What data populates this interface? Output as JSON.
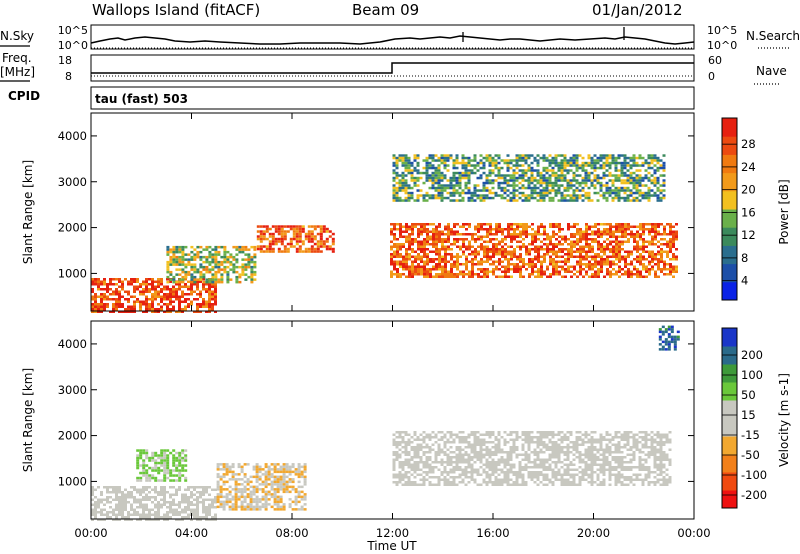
{
  "header": {
    "station": "Wallops Island (fitACF)",
    "beam": "Beam 09",
    "date": "01/Jan/2012"
  },
  "strips": {
    "nsky_label": "N.Sky",
    "nsky_ticks": [
      "10^5",
      "10^0"
    ],
    "nsearch_label": "N.Search",
    "nsearch_ticks": [
      "10^5",
      "10^0"
    ],
    "freq_label": "Freq.",
    "freq_unit": "[MHz]",
    "freq_ticks": [
      "18",
      "8"
    ],
    "nave_label": "Nave",
    "nave_ticks": [
      "60",
      "0"
    ],
    "cpid_label": "CPID",
    "cpid_text": "tau (fast) 503"
  },
  "axes": {
    "ylabel": "Slant Range [km]",
    "xlabel": "Time UT",
    "yticks": [
      "4000",
      "3000",
      "2000",
      "1000"
    ],
    "xticks": [
      "00:00",
      "04:00",
      "08:00",
      "12:00",
      "16:00",
      "20:00",
      "00:00"
    ]
  },
  "colorbars": {
    "power": {
      "label": "Power [dB]",
      "ticks": [
        "28",
        "24",
        "20",
        "16",
        "12",
        "8",
        "4"
      ],
      "colors": [
        "#0a22e6",
        "#1c4fa8",
        "#2a6e8e",
        "#3b8a5c",
        "#6ab04a",
        "#f2c020",
        "#f29a1a",
        "#f07a10",
        "#ec4a10",
        "#e62010"
      ]
    },
    "velocity": {
      "label": "Velocity [m s-1]",
      "ticks": [
        "200",
        "100",
        "50",
        "15",
        "-15",
        "-50",
        "-100",
        "-200"
      ],
      "colors": [
        "#ee1111",
        "#f04a10",
        "#f2801a",
        "#f2a830",
        "#c8c8c0",
        "#c8c8c0",
        "#6ac83a",
        "#3e9a3a",
        "#2a6a8a",
        "#1a36c8"
      ]
    }
  },
  "chart_data": [
    {
      "type": "heatmap",
      "title": "Power",
      "x_range_hours": [
        0,
        24
      ],
      "y_range_km": [
        180,
        4500
      ],
      "colorbar_label": "Power [dB]",
      "scale_dB": [
        0,
        32
      ],
      "features": [
        {
          "t_start": 0.0,
          "t_end": 5.0,
          "range_km": [
            180,
            900
          ],
          "power_dB": 28
        },
        {
          "t_start": 3.0,
          "t_end": 6.5,
          "range_km": [
            800,
            1600
          ],
          "power_dB": 16
        },
        {
          "t_start": 6.6,
          "t_end": 9.6,
          "range_km": [
            1500,
            2050
          ],
          "power_dB": 26
        },
        {
          "t_start": 11.9,
          "t_end": 23.3,
          "range_km": [
            900,
            2100
          ],
          "power_dB": 26
        },
        {
          "t_start": 12.0,
          "t_end": 22.8,
          "range_km": [
            2600,
            3600
          ],
          "power_dB": 12
        }
      ]
    },
    {
      "type": "heatmap",
      "title": "Velocity",
      "x_range_hours": [
        0,
        24
      ],
      "y_range_km": [
        180,
        4500
      ],
      "colorbar_label": "Velocity [m s-1]",
      "scale": [
        -250,
        250
      ],
      "features": [
        {
          "t_start": 0.0,
          "t_end": 5.0,
          "range_km": [
            180,
            900
          ],
          "velocity": 0
        },
        {
          "t_start": 1.8,
          "t_end": 3.8,
          "range_km": [
            1000,
            1700
          ],
          "velocity": 60
        },
        {
          "t_start": 5.0,
          "t_end": 8.5,
          "range_km": [
            400,
            1400
          ],
          "velocity": -40
        },
        {
          "t_start": 12.0,
          "t_end": 23.0,
          "range_km": [
            900,
            2100
          ],
          "velocity": 0
        },
        {
          "t_start": 22.6,
          "t_end": 23.4,
          "range_km": [
            3900,
            4400
          ],
          "velocity": 180
        }
      ]
    }
  ]
}
